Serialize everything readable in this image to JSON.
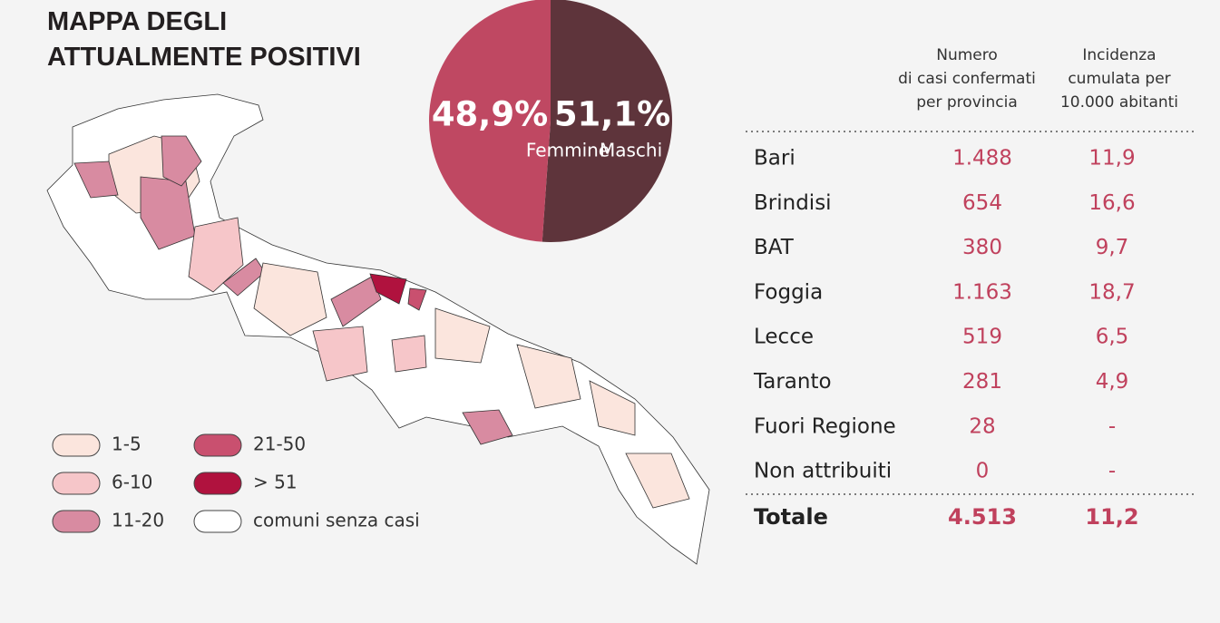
{
  "title_lines": [
    "MAPPA DEGLI",
    "ATTUALMENTE POSITIVI"
  ],
  "chart_data": {
    "type": "pie",
    "categories": [
      "Femmine",
      "Maschi"
    ],
    "values": [
      48.9,
      51.1
    ],
    "value_labels": [
      "48,9%",
      "51,1%"
    ],
    "colors": [
      "#bf4862",
      "#5e343b"
    ]
  },
  "legend": [
    {
      "label": "1-5",
      "color": "#fbe5dd"
    },
    {
      "label": "6-10",
      "color": "#f6c6c9"
    },
    {
      "label": "11-20",
      "color": "#d88ba1"
    },
    {
      "label": "21-50",
      "color": "#c9506f"
    },
    {
      "label": "> 51",
      "color": "#b0123e"
    },
    {
      "label": "comuni senza casi",
      "color": "#ffffff"
    }
  ],
  "table": {
    "columns": [
      [
        "Numero",
        "di casi confermati",
        "per provincia"
      ],
      [
        "Incidenza",
        "cumulata per",
        "10.000 abitanti"
      ]
    ],
    "rows": [
      [
        "Bari",
        "1.488",
        "11,9"
      ],
      [
        "Brindisi",
        "654",
        "16,6"
      ],
      [
        "BAT",
        "380",
        "9,7"
      ],
      [
        "Foggia",
        "1.163",
        "18,7"
      ],
      [
        "Lecce",
        "519",
        "6,5"
      ],
      [
        "Taranto",
        "281",
        "4,9"
      ],
      [
        "Fuori Regione",
        "28",
        "-"
      ],
      [
        "Non attribuiti",
        "0",
        "-"
      ]
    ],
    "total": [
      "Totale",
      "4.513",
      "11,2"
    ]
  }
}
